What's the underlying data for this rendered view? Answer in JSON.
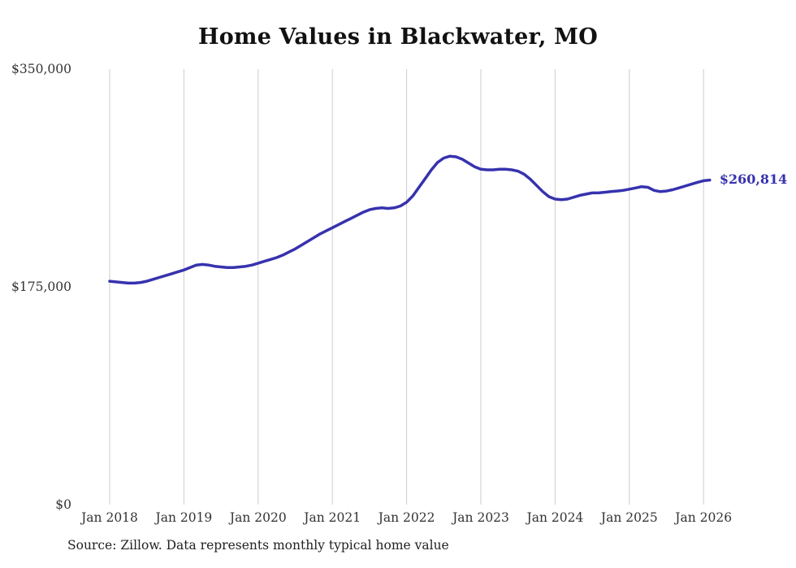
{
  "chart": {
    "source_note": "Source: Zillow. Data represents monthly typical home value"
  },
  "chart_data": {
    "type": "line",
    "title": "Home Values in Blackwater, MO",
    "xlabel": "",
    "ylabel": "",
    "ylim": [
      0,
      350000
    ],
    "grid": "vertical-only",
    "grid_color": "#cccccc",
    "line_color": "#3632ae",
    "end_label": "$260,814",
    "end_value": 260814,
    "x_tick_labels": [
      "Jan 2018",
      "Jan 2019",
      "Jan 2020",
      "Jan 2021",
      "Jan 2022",
      "Jan 2023",
      "Jan 2024",
      "Jan 2025",
      "Jan 2026"
    ],
    "y_ticks": [
      {
        "value": 350000,
        "label": "$350,000"
      },
      {
        "value": 175000,
        "label": "$175,000"
      },
      {
        "value": 0,
        "label": "$0"
      }
    ],
    "series": [
      {
        "name": "Typical home value",
        "start": "2018-01",
        "interval": "monthly",
        "values": [
          179500,
          179000,
          178500,
          178000,
          178000,
          178500,
          179500,
          181000,
          182500,
          184000,
          185500,
          187000,
          188500,
          190500,
          192500,
          193000,
          192500,
          191500,
          191000,
          190500,
          190500,
          191000,
          191500,
          192500,
          194000,
          195500,
          197000,
          198500,
          200500,
          203000,
          205500,
          208500,
          211500,
          214500,
          217500,
          220000,
          222500,
          225000,
          227500,
          230000,
          232500,
          235000,
          237000,
          238000,
          238500,
          238000,
          238500,
          240000,
          243000,
          248000,
          255000,
          262000,
          269000,
          275000,
          278500,
          280000,
          279500,
          277500,
          274500,
          271500,
          269500,
          269000,
          269000,
          269500,
          269500,
          269000,
          268000,
          265500,
          261500,
          256500,
          251500,
          247500,
          245500,
          245000,
          245500,
          247000,
          248500,
          249500,
          250500,
          250500,
          251000,
          251500,
          252000,
          252500,
          253500,
          254500,
          255500,
          255000,
          252500,
          251500,
          252000,
          253000,
          254500,
          256000,
          257500,
          259000,
          260300,
          260814
        ]
      }
    ]
  }
}
